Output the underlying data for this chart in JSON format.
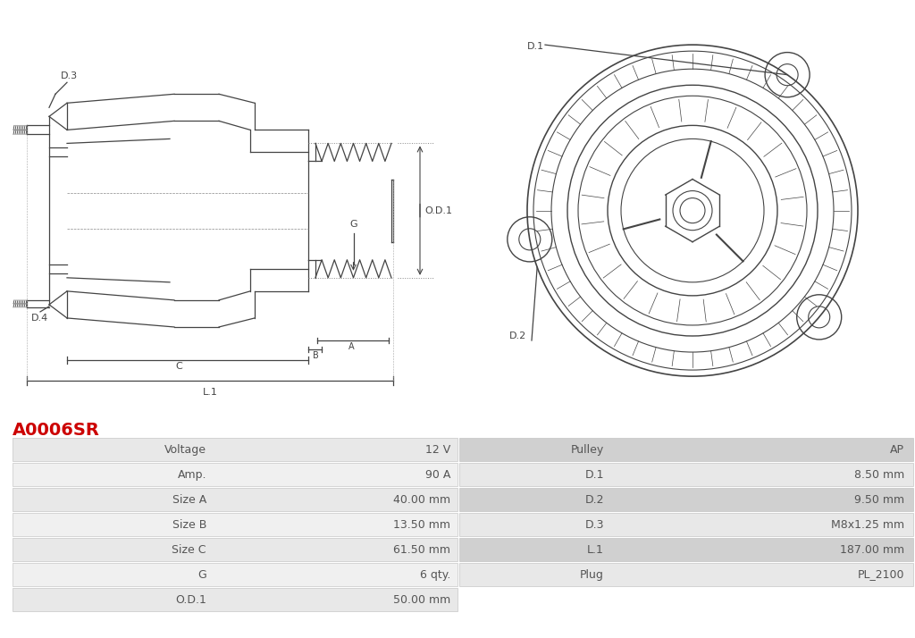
{
  "title": "A0006SR",
  "title_color": "#cc0000",
  "title_fontsize": 14,
  "table_rows": [
    [
      "Voltage",
      "12 V",
      "Pulley",
      "AP"
    ],
    [
      "Amp.",
      "90 A",
      "D.1",
      "8.50 mm"
    ],
    [
      "Size A",
      "40.00 mm",
      "D.2",
      "9.50 mm"
    ],
    [
      "Size B",
      "13.50 mm",
      "D.3",
      "M8x1.25 mm"
    ],
    [
      "Size C",
      "61.50 mm",
      "L.1",
      "187.00 mm"
    ],
    [
      "G",
      "6 qty.",
      "Plug",
      "PL_2100"
    ],
    [
      "O.D.1",
      "50.00 mm",
      "",
      ""
    ]
  ],
  "line_color": "#444444",
  "dim_color": "#444444",
  "text_color": "#555555",
  "table_bg1": "#e8e8e8",
  "table_bg2": "#f0f0f0",
  "table_sep": "#d0d0d0",
  "bg_color": "#ffffff"
}
